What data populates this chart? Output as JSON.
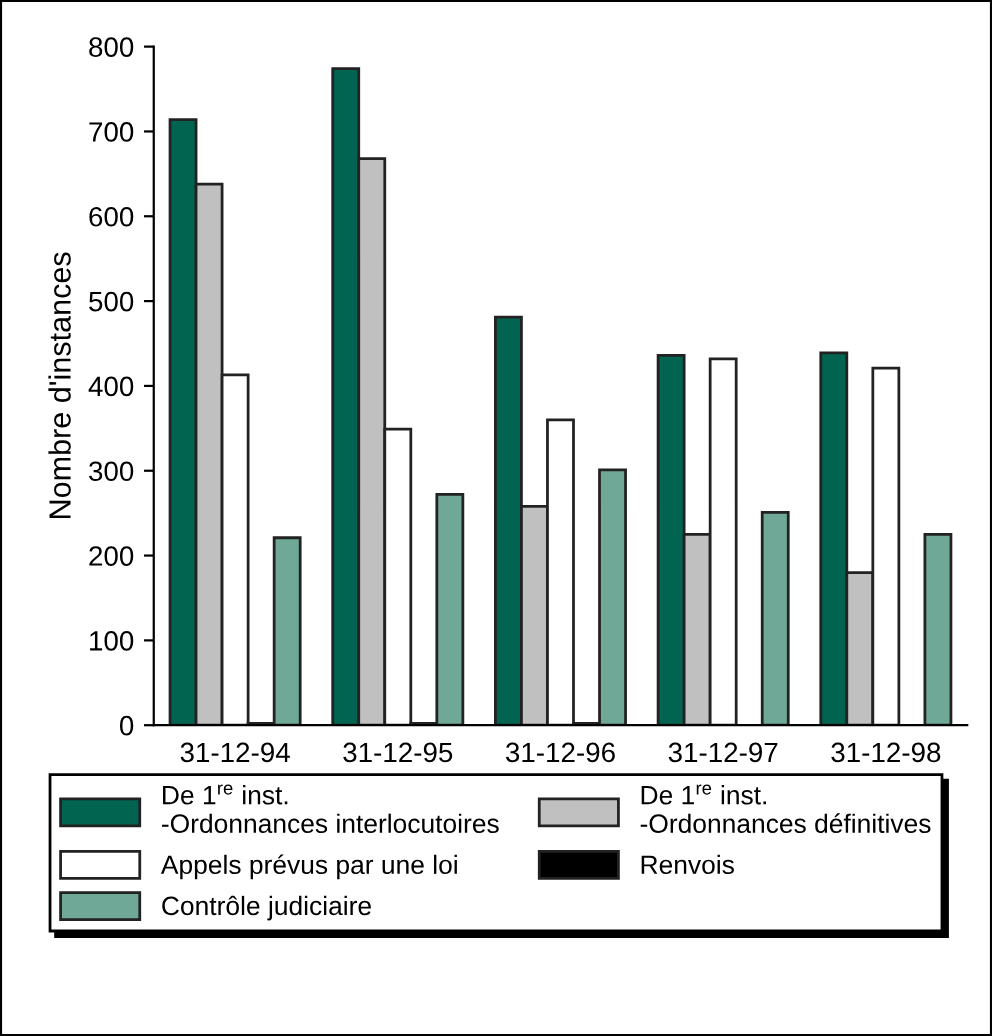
{
  "chart_data": {
    "type": "bar",
    "ylabel": "Nombre d'instances",
    "categories": [
      "31-12-94",
      "31-12-95",
      "31-12-96",
      "31-12-97",
      "31-12-98"
    ],
    "series": [
      {
        "name": "De 1$^{re}$ inst.\n-Ordonnances interlocutoires",
        "color": "#006450",
        "values": [
          714,
          774,
          481,
          436,
          439
        ]
      },
      {
        "name": "De 1$^{re}$ inst.\n-Ordonnances définitives",
        "color": "#c0c0c0",
        "values": [
          638,
          668,
          258,
          225,
          180
        ]
      },
      {
        "name": "Appels prévus par une loi",
        "color": "#ffffff",
        "values": [
          413,
          349,
          360,
          432,
          421
        ]
      },
      {
        "name": "Renvois",
        "color": "#000000",
        "values": [
          2,
          2,
          2,
          null,
          null
        ]
      },
      {
        "name": "Contrôle judiciaire",
        "color": "#70a898",
        "values": [
          221,
          272,
          301,
          251,
          225
        ]
      }
    ],
    "ylim": [
      0,
      800
    ],
    "yticks": [
      0,
      100,
      200,
      300,
      400,
      500,
      600,
      700,
      800
    ],
    "grid": false,
    "legend": "bottom"
  }
}
